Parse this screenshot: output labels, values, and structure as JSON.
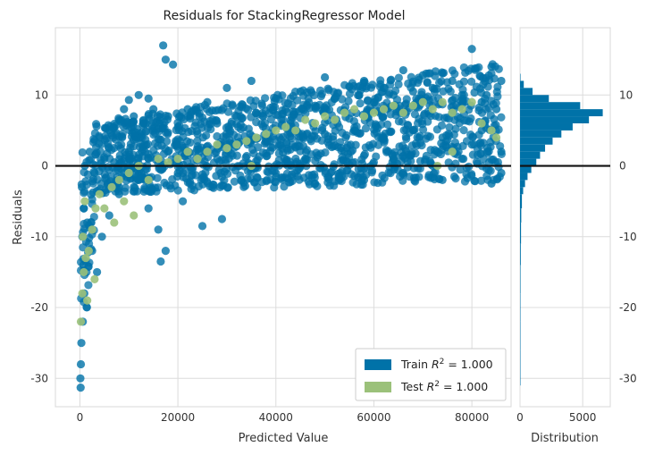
{
  "chart_data": [
    {
      "type": "scatter",
      "title": "Residuals for StackingRegressor Model",
      "xlabel": "Predicted Value",
      "ylabel": "Residuals",
      "xlim": [
        -5000,
        88000
      ],
      "ylim": [
        -34,
        19.5
      ],
      "x_ticks": [
        0,
        20000,
        40000,
        60000,
        80000
      ],
      "x_tick_labels": [
        "0",
        "20000",
        "40000",
        "60000",
        "80000"
      ],
      "y_ticks": [
        -30,
        -20,
        -10,
        0,
        10
      ],
      "y_tick_labels": [
        "-30",
        "-20",
        "-10",
        "0",
        "10"
      ],
      "grid": true,
      "reference_line": 0,
      "legend_position": "bottom-right",
      "series": [
        {
          "name": "Train R^2 = 1.000",
          "legend_main": "Train ",
          "legend_r": "R",
          "legend_sup": "2",
          "legend_value": " = 1.000",
          "color": "#0072a8",
          "points": [
            [
              17000,
              17
            ],
            [
              17500,
              15
            ],
            [
              19000,
              14.3
            ],
            [
              30000,
              11
            ],
            [
              35000,
              12
            ],
            [
              50000,
              12.5
            ],
            [
              58000,
              12
            ],
            [
              66000,
              13.5
            ],
            [
              80000,
              16.5
            ],
            [
              70000,
              12.8
            ],
            [
              12000,
              10
            ],
            [
              14000,
              9.5
            ],
            [
              10000,
              9.3
            ],
            [
              22000,
              8
            ],
            [
              26000,
              9
            ],
            [
              40000,
              9.5
            ],
            [
              45000,
              10.5
            ],
            [
              55000,
              11.2
            ],
            [
              62000,
              11
            ],
            [
              76000,
              12
            ],
            [
              84000,
              14
            ],
            [
              86000,
              12
            ],
            [
              83000,
              10
            ],
            [
              2000,
              2
            ],
            [
              4000,
              4
            ],
            [
              6000,
              5
            ],
            [
              8000,
              6.5
            ],
            [
              9000,
              8
            ],
            [
              11000,
              7
            ],
            [
              13000,
              6
            ],
            [
              15000,
              8
            ],
            [
              18000,
              7
            ],
            [
              20000,
              5.5
            ],
            [
              24000,
              4.5
            ],
            [
              28000,
              6
            ],
            [
              32000,
              7
            ],
            [
              36000,
              7.5
            ],
            [
              42000,
              8
            ],
            [
              48000,
              8.5
            ],
            [
              52000,
              9.5
            ],
            [
              57000,
              10
            ],
            [
              60000,
              9
            ],
            [
              64000,
              10
            ],
            [
              68000,
              10.5
            ],
            [
              72000,
              11
            ],
            [
              78000,
              10
            ],
            [
              82000,
              9
            ],
            [
              85000,
              8
            ],
            [
              1000,
              0
            ],
            [
              3000,
              -1
            ],
            [
              5000,
              1
            ],
            [
              7000,
              0.5
            ],
            [
              10000,
              2
            ],
            [
              14000,
              1
            ],
            [
              18000,
              2
            ],
            [
              22000,
              1.5
            ],
            [
              26000,
              2
            ],
            [
              30000,
              3
            ],
            [
              34000,
              3.5
            ],
            [
              38000,
              4
            ],
            [
              44000,
              5
            ],
            [
              50000,
              4.5
            ],
            [
              56000,
              5
            ],
            [
              62000,
              4
            ],
            [
              68000,
              5
            ],
            [
              74000,
              4
            ],
            [
              80000,
              3
            ],
            [
              86000,
              2
            ],
            [
              400,
              -3
            ],
            [
              800,
              -6
            ],
            [
              500,
              -10
            ],
            [
              700,
              -14
            ],
            [
              900,
              -18
            ],
            [
              600,
              -22
            ],
            [
              300,
              -25
            ],
            [
              200,
              -28
            ],
            [
              100,
              -30
            ],
            [
              150,
              -31.3
            ],
            [
              1500,
              -8
            ],
            [
              2500,
              -12
            ],
            [
              3500,
              -15
            ],
            [
              4500,
              -10
            ],
            [
              6000,
              -7
            ],
            [
              8000,
              -4
            ],
            [
              11000,
              -3
            ],
            [
              14000,
              -6
            ],
            [
              16000,
              -9
            ],
            [
              17500,
              -12
            ],
            [
              16500,
              -13.5
            ],
            [
              21000,
              -5
            ],
            [
              25000,
              -8.5
            ],
            [
              29000,
              -7.5
            ],
            [
              33000,
              -2
            ],
            [
              40000,
              -1.5
            ],
            [
              48000,
              -2.5
            ],
            [
              58000,
              -2
            ],
            [
              66000,
              -1
            ],
            [
              74000,
              -2
            ],
            [
              84000,
              -2.5
            ],
            [
              86000,
              -1
            ],
            [
              9000,
              -1
            ],
            [
              12000,
              -2
            ],
            [
              20000,
              -1
            ],
            [
              36000,
              0
            ],
            [
              46000,
              1
            ],
            [
              54000,
              2
            ],
            [
              64000,
              1
            ],
            [
              72000,
              0
            ],
            [
              78000,
              1
            ],
            [
              82000,
              5
            ]
          ]
        },
        {
          "name": "Test R^2 = 1.000",
          "legend_main": "Test ",
          "legend_r": "R",
          "legend_sup": "2",
          "legend_value": " = 1.000",
          "color": "#9bc17a",
          "points": [
            [
              200,
              -22
            ],
            [
              500,
              -18
            ],
            [
              800,
              -15
            ],
            [
              1200,
              -13
            ],
            [
              1800,
              -12
            ],
            [
              2500,
              -9
            ],
            [
              3200,
              -6
            ],
            [
              4000,
              -4
            ],
            [
              600,
              -10
            ],
            [
              1000,
              -5
            ],
            [
              5000,
              -6
            ],
            [
              6500,
              -3
            ],
            [
              8000,
              -2
            ],
            [
              10000,
              -1
            ],
            [
              12000,
              0
            ],
            [
              14000,
              -2
            ],
            [
              16000,
              1
            ],
            [
              18000,
              0.5
            ],
            [
              20000,
              1
            ],
            [
              22000,
              2
            ],
            [
              24000,
              1
            ],
            [
              26000,
              2
            ],
            [
              28000,
              3
            ],
            [
              30000,
              2.5
            ],
            [
              32000,
              3
            ],
            [
              34000,
              3.5
            ],
            [
              36000,
              4
            ],
            [
              38000,
              4.5
            ],
            [
              40000,
              5
            ],
            [
              42000,
              5.5
            ],
            [
              44000,
              5
            ],
            [
              46000,
              6.5
            ],
            [
              48000,
              6
            ],
            [
              50000,
              7
            ],
            [
              52000,
              6.5
            ],
            [
              54000,
              7.5
            ],
            [
              56000,
              8
            ],
            [
              58000,
              7
            ],
            [
              60000,
              7.5
            ],
            [
              62000,
              8
            ],
            [
              64000,
              8.5
            ],
            [
              66000,
              7.5
            ],
            [
              68000,
              8.5
            ],
            [
              70000,
              9
            ],
            [
              72000,
              8
            ],
            [
              74000,
              9
            ],
            [
              76000,
              7.5
            ],
            [
              78000,
              8
            ],
            [
              80000,
              9
            ],
            [
              82000,
              6
            ],
            [
              84000,
              5
            ],
            [
              85000,
              4
            ],
            [
              73000,
              0
            ],
            [
              76000,
              2
            ],
            [
              35000,
              0
            ],
            [
              9000,
              -5
            ],
            [
              11000,
              -7
            ],
            [
              3000,
              -16
            ],
            [
              1500,
              -19
            ],
            [
              7000,
              -8
            ]
          ]
        }
      ]
    },
    {
      "type": "histogram",
      "xlabel": "Distribution",
      "xlim": [
        0,
        7200
      ],
      "x_ticks": [
        0,
        5000
      ],
      "x_tick_labels": [
        "0",
        "5000"
      ],
      "y_ticks": [
        -30,
        -20,
        -10,
        0,
        10
      ],
      "y_tick_labels": [
        "-30",
        "-20",
        "-10",
        "0",
        "10"
      ],
      "orientation": "horizontal",
      "color": "#0072a8",
      "bins": [
        {
          "y0": 12,
          "y1": 13,
          "count": 40
        },
        {
          "y0": 11,
          "y1": 12,
          "count": 300
        },
        {
          "y0": 10,
          "y1": 11,
          "count": 1000
        },
        {
          "y0": 9,
          "y1": 10,
          "count": 2300
        },
        {
          "y0": 8,
          "y1": 9,
          "count": 4800
        },
        {
          "y0": 7,
          "y1": 8,
          "count": 6600
        },
        {
          "y0": 6,
          "y1": 7,
          "count": 5500
        },
        {
          "y0": 5,
          "y1": 6,
          "count": 4200
        },
        {
          "y0": 4,
          "y1": 5,
          "count": 3300
        },
        {
          "y0": 3,
          "y1": 4,
          "count": 2600
        },
        {
          "y0": 2,
          "y1": 3,
          "count": 2000
        },
        {
          "y0": 1,
          "y1": 2,
          "count": 1600
        },
        {
          "y0": 0,
          "y1": 1,
          "count": 1300
        },
        {
          "y0": -1,
          "y1": 0,
          "count": 900
        },
        {
          "y0": -2,
          "y1": -1,
          "count": 600
        },
        {
          "y0": -3,
          "y1": -2,
          "count": 400
        },
        {
          "y0": -4,
          "y1": -3,
          "count": 250
        },
        {
          "y0": -6,
          "y1": -4,
          "count": 150
        },
        {
          "y0": -8,
          "y1": -6,
          "count": 100
        },
        {
          "y0": -11,
          "y1": -8,
          "count": 80
        },
        {
          "y0": -14,
          "y1": -11,
          "count": 60
        },
        {
          "y0": -18,
          "y1": -14,
          "count": 40
        },
        {
          "y0": -22,
          "y1": -18,
          "count": 25
        },
        {
          "y0": -26,
          "y1": -22,
          "count": 12
        },
        {
          "y0": -31,
          "y1": -26,
          "count": 5
        }
      ]
    }
  ]
}
